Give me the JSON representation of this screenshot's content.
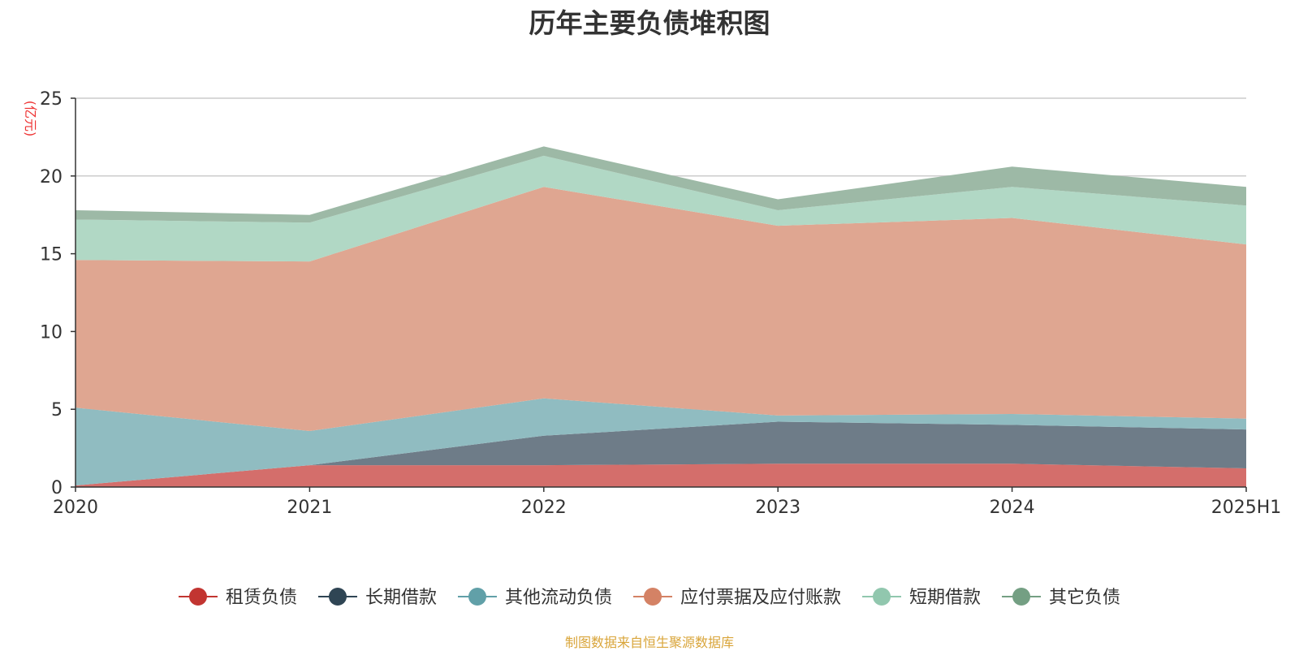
{
  "chart_data": {
    "type": "area",
    "stacked": true,
    "title": "历年主要负债堆积图",
    "ylabel": "(亿元)",
    "xlabel": "",
    "categories": [
      "2020",
      "2021",
      "2022",
      "2023",
      "2024",
      "2025H1"
    ],
    "ylim": [
      0,
      25
    ],
    "yticks": [
      0,
      5,
      10,
      15,
      20,
      25
    ],
    "grid": true,
    "legend_position": "bottom",
    "series": [
      {
        "name": "租赁负债",
        "values": [
          0.1,
          1.4,
          1.4,
          1.5,
          1.5,
          1.2
        ],
        "color": "#c23531",
        "fill": "#d46e6b"
      },
      {
        "name": "长期借款",
        "values": [
          0.0,
          0.0,
          1.9,
          2.7,
          2.5,
          2.5
        ],
        "color": "#2f4554",
        "fill": "#6e7c88"
      },
      {
        "name": "其他流动负债",
        "values": [
          5.0,
          2.2,
          2.4,
          0.4,
          0.7,
          0.7
        ],
        "color": "#61a0a8",
        "fill": "#90bcc1"
      },
      {
        "name": "应付票据及应付账款",
        "values": [
          9.5,
          10.9,
          13.6,
          12.2,
          12.6,
          11.2
        ],
        "color": "#d48265",
        "fill": "#dfa691"
      },
      {
        "name": "短期借款",
        "values": [
          2.6,
          2.5,
          2.0,
          1.0,
          2.0,
          2.5
        ],
        "color": "#91c7ae",
        "fill": "#b1d8c5"
      },
      {
        "name": "其它负债",
        "values": [
          0.6,
          0.5,
          0.6,
          0.7,
          1.3,
          1.2
        ],
        "color": "#749f83",
        "fill": "#9db9a6"
      }
    ]
  },
  "footer": {
    "source_text": "制图数据来自恒生聚源数据库"
  },
  "colors": {
    "axis": "#333333",
    "grid": "#cccccc",
    "unit_label": "#ee3333",
    "source_text": "#d9a53a"
  }
}
